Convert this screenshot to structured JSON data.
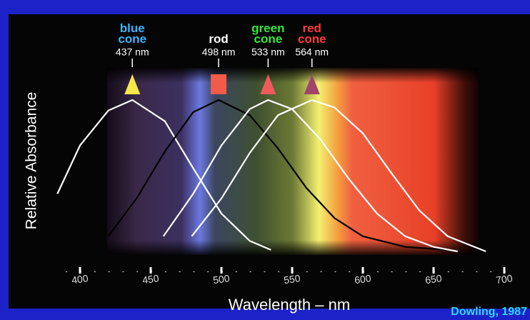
{
  "chart_data": {
    "type": "line",
    "x_label": "Wavelength – nm",
    "y_label": "Relative Absorbance",
    "credit": "Dowling, 1987",
    "xlim": [
      380,
      710
    ],
    "ylim": [
      0,
      1
    ],
    "xticks": [
      400,
      450,
      500,
      550,
      600,
      650,
      700
    ],
    "series": [
      {
        "name": "blue cone",
        "label_color": "#3ab4ff",
        "color": "#ffffff",
        "marker": "triangle",
        "marker_color": "#f6e84a",
        "peak": {
          "value": 437,
          "label": "437 nm"
        },
        "x": [
          384,
          400,
          420,
          437,
          460,
          480,
          500,
          520,
          535
        ],
        "values": [
          0.38,
          0.7,
          0.93,
          1.0,
          0.86,
          0.55,
          0.25,
          0.07,
          0.01
        ]
      },
      {
        "name": "rod",
        "label_color": "#ffffff",
        "color": "#000000",
        "marker": "square",
        "marker_color": "#f25a4a",
        "peak": {
          "value": 498,
          "label": "498 nm"
        },
        "x": [
          420,
          440,
          460,
          480,
          498,
          520,
          540,
          560,
          580,
          600,
          630,
          660
        ],
        "values": [
          0.1,
          0.35,
          0.66,
          0.92,
          1.0,
          0.9,
          0.68,
          0.42,
          0.22,
          0.1,
          0.03,
          0.01
        ]
      },
      {
        "name": "green cone",
        "label_color": "#36e836",
        "color": "#ffffff",
        "marker": "triangle",
        "marker_color": "#f05a5a",
        "peak": {
          "value": 533,
          "label": "533 nm"
        },
        "x": [
          459,
          480,
          500,
          520,
          533,
          550,
          570,
          590,
          610,
          630,
          650,
          667
        ],
        "values": [
          0.1,
          0.38,
          0.7,
          0.94,
          1.0,
          0.94,
          0.74,
          0.48,
          0.25,
          0.1,
          0.03,
          0.0
        ]
      },
      {
        "name": "red cone",
        "label_color": "#ff3a3a",
        "color": "#ffffff",
        "marker": "triangle",
        "marker_color": "#a0446a",
        "peak": {
          "value": 564,
          "label": "564 nm"
        },
        "x": [
          479,
          500,
          520,
          540,
          564,
          580,
          600,
          620,
          640,
          660,
          687
        ],
        "values": [
          0.1,
          0.35,
          0.65,
          0.9,
          1.0,
          0.95,
          0.78,
          0.52,
          0.27,
          0.1,
          0.0
        ]
      }
    ]
  }
}
